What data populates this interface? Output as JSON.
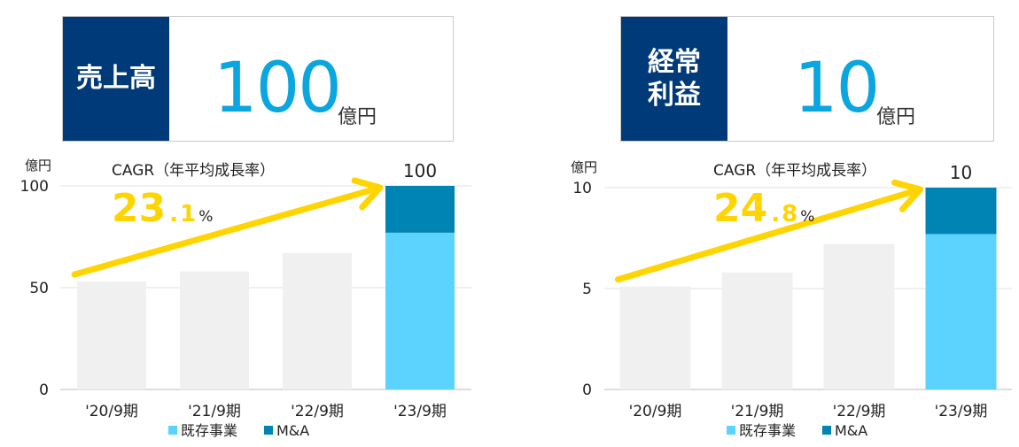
{
  "panels": [
    {
      "kpi": {
        "label": "売上高",
        "value": "100",
        "unit": "億円"
      },
      "cagr": {
        "label": "CAGR（年平均成長率）",
        "int_part": "23",
        "dot": ".",
        "dec_part": "1",
        "pct": "%"
      },
      "total_label": "100",
      "colors": {
        "existing": "#5cd2ff",
        "ma": "#0084b4",
        "past": "#f0f0f0",
        "arrow": "#ffd400"
      },
      "chart_data": {
        "type": "bar",
        "categories": [
          "'20/9期",
          "'21/9期",
          "'22/9期",
          "'23/9期"
        ],
        "series": [
          {
            "name": "既存事業",
            "values": [
              53,
              58,
              67,
              77
            ]
          },
          {
            "name": "M&A",
            "values": [
              0,
              0,
              0,
              23
            ]
          }
        ],
        "ylabel": "億円",
        "ylim": [
          0,
          100
        ],
        "yticks": [
          0,
          50,
          100
        ],
        "legend": "bottom",
        "grid": true
      }
    },
    {
      "kpi": {
        "label": "経常\n利益",
        "value": "10",
        "unit": "億円"
      },
      "cagr": {
        "label": "CAGR（年平均成長率）",
        "int_part": "24",
        "dot": ".",
        "dec_part": "8",
        "pct": "%"
      },
      "total_label": "10",
      "colors": {
        "existing": "#5cd2ff",
        "ma": "#0084b4",
        "past": "#f0f0f0",
        "arrow": "#ffd400"
      },
      "chart_data": {
        "type": "bar",
        "categories": [
          "'20/9期",
          "'21/9期",
          "'22/9期",
          "'23/9期"
        ],
        "series": [
          {
            "name": "既存事業",
            "values": [
              5.1,
              5.8,
              7.2,
              7.7
            ]
          },
          {
            "name": "M&A",
            "values": [
              0,
              0,
              0,
              2.3
            ]
          }
        ],
        "ylabel": "億円",
        "ylim": [
          0,
          10
        ],
        "yticks": [
          0,
          5,
          10
        ],
        "legend": "bottom",
        "grid": true
      }
    }
  ]
}
